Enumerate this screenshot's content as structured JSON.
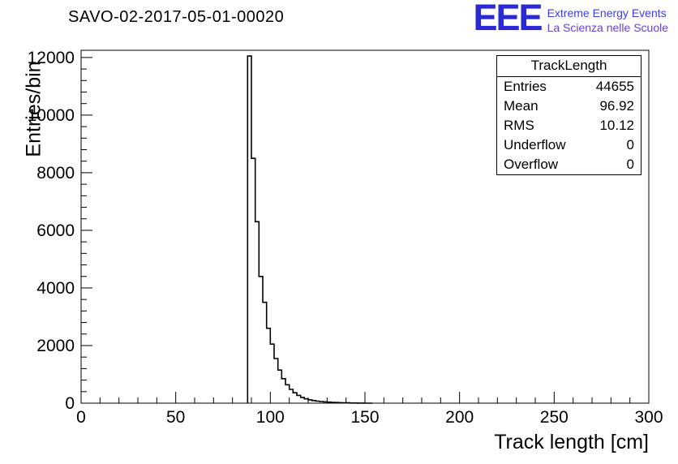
{
  "logo": {
    "acronym": "EEE",
    "line1": "Extreme Energy Events",
    "line2": "La Scienza nelle Scuole"
  },
  "colors": {
    "histogram_line": "#000000",
    "frame": "#000000",
    "logo_acronym": "#2a2ad4",
    "logo_line1": "#3d3de8",
    "logo_line2": "#6a3fd8",
    "background": "#ffffff"
  },
  "chart_data": {
    "type": "bar",
    "subtype": "histogram-step",
    "title": "SAVO-02-2017-05-01-00020",
    "xlabel": "Track length [cm]",
    "ylabel": "Entries/bin",
    "xlim": [
      0,
      300
    ],
    "ylim": [
      0,
      12250
    ],
    "x_ticks": [
      0,
      50,
      100,
      150,
      200,
      250,
      300
    ],
    "x_minor_step": 10,
    "y_ticks": [
      0,
      2000,
      4000,
      6000,
      8000,
      10000,
      12000
    ],
    "y_minor_step": 400,
    "grid": false,
    "legend": false,
    "line_color": "#000000",
    "bins_start": 88,
    "bin_width": 2,
    "counts": [
      12050,
      8500,
      6300,
      4400,
      3500,
      2600,
      2050,
      1550,
      1150,
      850,
      640,
      480,
      360,
      270,
      200,
      150,
      115,
      90,
      70,
      55,
      45,
      36,
      29,
      23,
      18,
      14,
      10,
      7,
      5,
      3,
      2,
      1,
      1
    ],
    "stats_box": {
      "title": "TrackLength",
      "rows": [
        {
          "label": "Entries",
          "value": "44655"
        },
        {
          "label": "Mean",
          "value": "96.92"
        },
        {
          "label": "RMS",
          "value": "10.12"
        },
        {
          "label": "Underflow",
          "value": "0"
        },
        {
          "label": "Overflow",
          "value": "0"
        }
      ]
    }
  }
}
